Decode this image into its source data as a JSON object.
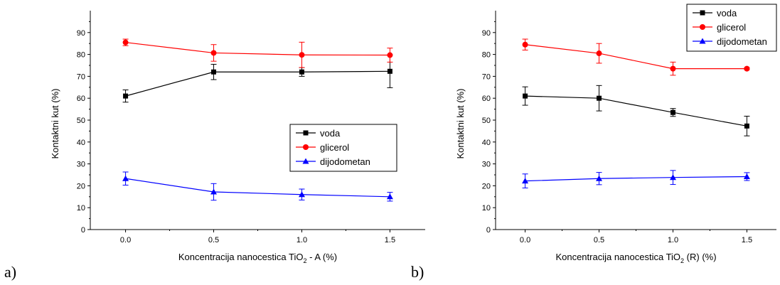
{
  "panel_labels": [
    "a)",
    "b)"
  ],
  "colors": {
    "voda": "#000000",
    "glicerol": "#ff0000",
    "dijodometan": "#0000ff"
  },
  "chart_data": [
    {
      "type": "line",
      "title": "",
      "xlabel_prefix": "Koncentracija nanocestica TiO",
      "xlabel_sub": "2",
      "xlabel_suffix": " - A (%)",
      "ylabel": "Kontaktni kut (%)",
      "x": [
        0.0,
        0.5,
        1.0,
        1.5
      ],
      "x_ticks": [
        "0.0",
        "0.5",
        "1.0",
        "1.5"
      ],
      "xlim": [
        -0.2,
        1.7
      ],
      "y_ticks": [
        "0",
        "10",
        "20",
        "30",
        "40",
        "50",
        "60",
        "70",
        "80",
        "90"
      ],
      "ylim": [
        0,
        100
      ],
      "legend_position": "center-right",
      "series": [
        {
          "name": "voda",
          "marker": "square",
          "color": "#000000",
          "values": [
            61,
            72,
            72,
            72.3
          ],
          "errors": [
            2.8,
            3.5,
            2.0,
            7.5
          ]
        },
        {
          "name": "glicerol",
          "marker": "circle",
          "color": "#ff0000",
          "values": [
            85.5,
            80.7,
            79.8,
            79.7
          ],
          "errors": [
            1.5,
            3.8,
            5.8,
            3.2
          ]
        },
        {
          "name": "dijodometan",
          "marker": "triangle",
          "color": "#0000ff",
          "values": [
            23.3,
            17.2,
            16.0,
            15.0
          ],
          "errors": [
            3.0,
            3.8,
            2.5,
            2.0
          ]
        }
      ]
    },
    {
      "type": "line",
      "title": "",
      "xlabel_prefix": "Koncentracija nanocestica TiO",
      "xlabel_sub": "2",
      "xlabel_suffix": " (R) (%)",
      "ylabel": "Kontaktni kut (%)",
      "x": [
        0.0,
        0.5,
        1.0,
        1.5
      ],
      "x_ticks": [
        "0.0",
        "0.5",
        "1.0",
        "1.5"
      ],
      "xlim": [
        -0.2,
        1.7
      ],
      "y_ticks": [
        "0",
        "10",
        "20",
        "30",
        "40",
        "50",
        "60",
        "70",
        "80",
        "90"
      ],
      "ylim": [
        0,
        100
      ],
      "legend_position": "top-right",
      "series": [
        {
          "name": "voda",
          "marker": "square",
          "color": "#000000",
          "values": [
            61,
            60,
            53.5,
            47.3
          ],
          "errors": [
            4.2,
            5.8,
            1.8,
            4.5
          ]
        },
        {
          "name": "glicerol",
          "marker": "circle",
          "color": "#ff0000",
          "values": [
            84.5,
            80.5,
            73.5,
            73.5
          ],
          "errors": [
            2.5,
            4.5,
            3.0,
            0.5
          ]
        },
        {
          "name": "dijodometan",
          "marker": "triangle",
          "color": "#0000ff",
          "values": [
            22.2,
            23.3,
            23.8,
            24.2
          ],
          "errors": [
            3.2,
            2.8,
            3.2,
            1.8
          ]
        }
      ]
    }
  ]
}
